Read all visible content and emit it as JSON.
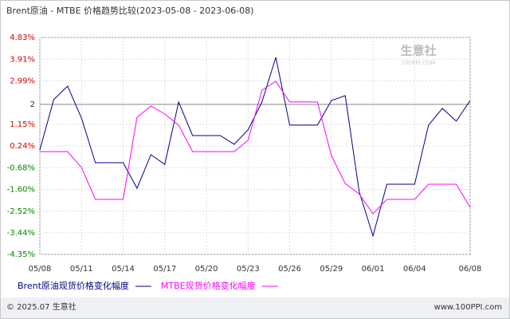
{
  "chart_data": {
    "type": "line",
    "title": "Brent原油 - MTBE 价格趋势比较(2023-05-08 - 2023-06-08)",
    "categories": [
      "05/08",
      null,
      null,
      "05/11",
      null,
      null,
      "05/14",
      null,
      null,
      "05/17",
      null,
      null,
      "05/20",
      null,
      null,
      "05/23",
      null,
      null,
      "05/26",
      null,
      null,
      "05/29",
      null,
      null,
      "06/01",
      null,
      null,
      "06/04",
      null,
      null,
      null,
      "06/08"
    ],
    "series": [
      {
        "name": "Brent原油现货价格变化幅度",
        "color": "#00008b",
        "values": [
          0.07,
          2.2,
          2.77,
          1.42,
          -0.47,
          -0.47,
          -0.47,
          -1.55,
          -0.13,
          -0.54,
          2.1,
          0.68,
          0.68,
          0.68,
          0.31,
          0.92,
          2.1,
          3.99,
          1.12,
          1.12,
          1.12,
          2.16,
          2.37,
          -1.68,
          -3.57,
          -1.38,
          -1.38,
          -1.38,
          1.12,
          1.83,
          1.29,
          2.16
        ]
      },
      {
        "name": "MTBE现货价格变化幅度",
        "color": "#ff00ff",
        "values": [
          0,
          0,
          0,
          -0.67,
          -2.02,
          -2.02,
          -2.02,
          1.45,
          1.93,
          1.59,
          1.12,
          0,
          0,
          0,
          0,
          0.48,
          2.6,
          2.97,
          2.1,
          2.1,
          2.1,
          -0.17,
          -1.35,
          -1.79,
          -2.63,
          -2.02,
          -2.02,
          -2.02,
          -1.38,
          -1.38,
          -1.38,
          -2.36
        ]
      }
    ],
    "ylim": [
      -4.35,
      4.83
    ],
    "yticks": [
      {
        "value": 4.83,
        "label": "4.83%"
      },
      {
        "value": 3.91,
        "label": "3.91%"
      },
      {
        "value": 2.99,
        "label": "2.99%"
      },
      2,
      {
        "value": 1.15,
        "label": "1.15%"
      },
      {
        "value": 0.24,
        "label": "0.24%"
      },
      {
        "value": -0.68,
        "label": "-0.68%"
      },
      {
        "value": -1.6,
        "label": "-1.60%"
      },
      {
        "value": -2.52,
        "label": "-2.52%"
      },
      {
        "value": -3.44,
        "label": "-3.44%"
      },
      {
        "value": -4.35,
        "label": "-4.35%"
      }
    ],
    "reference_line": 2,
    "grid": true,
    "watermark": {
      "name": "生意社",
      "site": "100PPI.COM"
    },
    "footer": {
      "copyright": "© 2025.07 生意社",
      "site": "www.100PPI.com"
    }
  }
}
